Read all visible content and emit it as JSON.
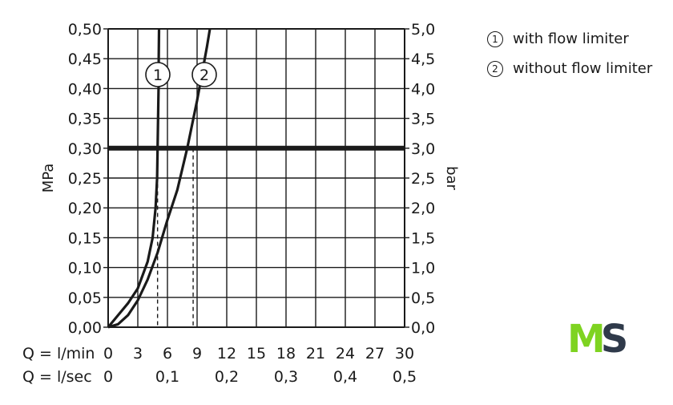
{
  "chart_data": {
    "type": "line",
    "left_axis": {
      "label": "MPa",
      "range": [
        0,
        0.5
      ],
      "ticks": [
        "0,00",
        "0,05",
        "0,10",
        "0,15",
        "0,20",
        "0,25",
        "0,30",
        "0,35",
        "0,40",
        "0,45",
        "0,50"
      ]
    },
    "right_axis": {
      "label": "bar",
      "range": [
        0,
        5
      ],
      "ticks": [
        "0,0",
        "0,5",
        "1,0",
        "1,5",
        "2,0",
        "2,5",
        "3,0",
        "3,5",
        "4,0",
        "4,5",
        "5,0"
      ]
    },
    "x_axis_lmin": {
      "label": "Q = l/min",
      "range": [
        0,
        30
      ],
      "ticks": [
        "0",
        "3",
        "6",
        "9",
        "12",
        "15",
        "18",
        "21",
        "24",
        "27",
        "30"
      ],
      "values": [
        0,
        3,
        6,
        9,
        12,
        15,
        18,
        21,
        24,
        27,
        30
      ]
    },
    "x_axis_lsec": {
      "label": "Q = l/sec",
      "ticks": [
        "0",
        "0,1",
        "0,2",
        "0,3",
        "0,4",
        "0,5"
      ],
      "values": [
        0,
        0.1,
        0.2,
        0.3,
        0.4,
        0.5
      ]
    },
    "grid": true,
    "reference_line": {
      "y": 0.3
    },
    "series": [
      {
        "label": "1",
        "points": [
          [
            0,
            0
          ],
          [
            1,
            0.02
          ],
          [
            2,
            0.04
          ],
          [
            3,
            0.065
          ],
          [
            4,
            0.11
          ],
          [
            4.5,
            0.15
          ],
          [
            4.8,
            0.2
          ],
          [
            4.95,
            0.25
          ],
          [
            5.0,
            0.3
          ],
          [
            5.05,
            0.35
          ],
          [
            5.1,
            0.4
          ],
          [
            5.12,
            0.45
          ],
          [
            5.15,
            0.5
          ]
        ],
        "marker_x": 5.0
      },
      {
        "label": "2",
        "points": [
          [
            0,
            0
          ],
          [
            1,
            0.005
          ],
          [
            2,
            0.02
          ],
          [
            3,
            0.045
          ],
          [
            4,
            0.08
          ],
          [
            5,
            0.125
          ],
          [
            6,
            0.18
          ],
          [
            7,
            0.23
          ],
          [
            8,
            0.3
          ],
          [
            9,
            0.38
          ],
          [
            10,
            0.47
          ],
          [
            10.3,
            0.5
          ]
        ],
        "marker_x": 8.6
      }
    ]
  },
  "legend": [
    {
      "num": "1",
      "label": "with flow limiter"
    },
    {
      "num": "2",
      "label": "without flow limiter"
    }
  ],
  "logo": {
    "letters": "MS",
    "m_color": "#7ed321",
    "s_color": "#2f3a4a"
  }
}
